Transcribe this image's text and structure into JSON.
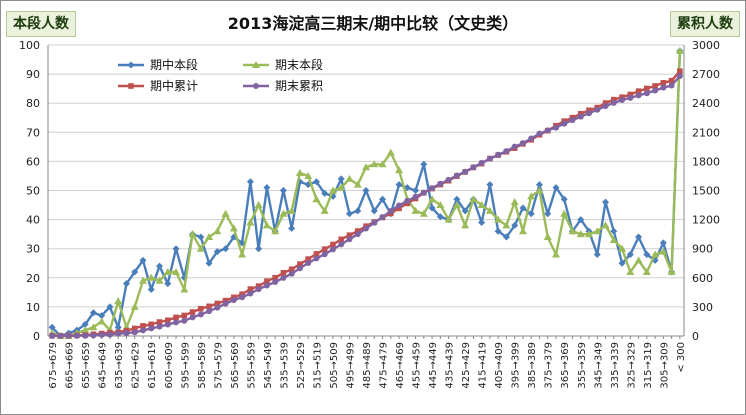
{
  "chart_data": {
    "type": "line",
    "title": "2013海淀高三期末/期中比较（文史类）",
    "ylabel_left": "本段人数",
    "ylabel_right": "累积人数",
    "ylim_left": [
      0,
      100
    ],
    "ylim_right": [
      0,
      3000
    ],
    "yticks_left": [
      0,
      10,
      20,
      30,
      40,
      50,
      60,
      70,
      80,
      90,
      100
    ],
    "yticks_right": [
      0,
      300,
      600,
      900,
      1200,
      1500,
      1800,
      2100,
      2400,
      2700,
      3000
    ],
    "grid": true,
    "legend_position": "top-left",
    "categories": [
      "675→679",
      "670→674",
      "665→669",
      "660→664",
      "655→659",
      "650→654",
      "645→649",
      "640→644",
      "635→639",
      "630→634",
      "625→629",
      "620→624",
      "615→619",
      "610→614",
      "605→609",
      "600→604",
      "595→599",
      "590→594",
      "585→589",
      "580→584",
      "575→579",
      "570→574",
      "565→569",
      "560→564",
      "555→559",
      "550→554",
      "545→549",
      "540→544",
      "535→539",
      "530→534",
      "525→529",
      "520→524",
      "515→519",
      "510→514",
      "505→509",
      "500→504",
      "495→499",
      "490→494",
      "485→489",
      "480→484",
      "475→479",
      "470→474",
      "465→469",
      "460→464",
      "455→459",
      "450→454",
      "445→449",
      "440→444",
      "435→439",
      "430→434",
      "425→429",
      "420→424",
      "415→419",
      "410→414",
      "405→409",
      "400→404",
      "395→399",
      "390→394",
      "385→389",
      "380→384",
      "375→379",
      "370→374",
      "365→369",
      "360→364",
      "355→359",
      "350→354",
      "345→349",
      "340→344",
      "335→339",
      "330→334",
      "325→329",
      "320→324",
      "315→319",
      "310→314",
      "305→309",
      "300→304",
      "< 300"
    ],
    "tick_labels_shown": [
      "675→679",
      "665→669",
      "655→659",
      "645→649",
      "635→639",
      "625→629",
      "615→619",
      "605→609",
      "595→599",
      "585→589",
      "575→579",
      "565→569",
      "555→559",
      "545→549",
      "535→539",
      "525→529",
      "515→519",
      "505→509",
      "495→499",
      "485→489",
      "475→479",
      "465→469",
      "455→459",
      "445→449",
      "435→439",
      "425→429",
      "415→419",
      "405→409",
      "395→399",
      "385→389",
      "375→379",
      "365→369",
      "355→359",
      "345→349",
      "335→339",
      "325→329",
      "315→319",
      "305→309",
      "< 300"
    ],
    "series": [
      {
        "name": "期中本段",
        "axis": "left",
        "color": "#4a7ebb",
        "marker": "diamond",
        "values": [
          3,
          0,
          1,
          2,
          4,
          8,
          7,
          10,
          3,
          18,
          22,
          26,
          16,
          24,
          18,
          30,
          20,
          35,
          34,
          25,
          29,
          30,
          34,
          32,
          53,
          30,
          51,
          36,
          50,
          37,
          53,
          52,
          53,
          49,
          48,
          54,
          42,
          43,
          50,
          43,
          47,
          42,
          52,
          51,
          50,
          59,
          44,
          41,
          40,
          47,
          43,
          47,
          39,
          52,
          36,
          34,
          38,
          44,
          42,
          52,
          42,
          51,
          47,
          36,
          40,
          36,
          28,
          46,
          36,
          25,
          28,
          34,
          28,
          26,
          32,
          22,
          98
        ]
      },
      {
        "name": "期末本段",
        "axis": "left",
        "color": "#9bbb59",
        "marker": "triangle",
        "values": [
          1,
          0,
          0,
          1,
          2,
          3,
          5,
          2,
          12,
          3,
          10,
          19,
          20,
          19,
          22,
          22,
          16,
          35,
          30,
          34,
          36,
          42,
          37,
          28,
          39,
          45,
          38,
          36,
          42,
          43,
          56,
          55,
          47,
          43,
          50,
          51,
          54,
          52,
          58,
          59,
          59,
          63,
          57,
          47,
          43,
          42,
          47,
          45,
          40,
          45,
          38,
          47,
          45,
          43,
          40,
          38,
          46,
          36,
          48,
          50,
          34,
          28,
          42,
          36,
          35,
          35,
          36,
          38,
          33,
          30,
          22,
          26,
          22,
          28,
          29,
          22,
          98
        ]
      },
      {
        "name": "期中累计",
        "axis": "right",
        "color": "#c0504d",
        "marker": "square",
        "values": [
          3,
          3,
          4,
          6,
          10,
          18,
          25,
          35,
          38,
          56,
          78,
          104,
          120,
          144,
          162,
          192,
          212,
          247,
          281,
          306,
          335,
          365,
          399,
          431,
          484,
          514,
          565,
          601,
          651,
          688,
          741,
          793,
          846,
          895,
          943,
          997,
          1039,
          1082,
          1132,
          1175,
          1222,
          1264,
          1316,
          1367,
          1417,
          1476,
          1520,
          1561,
          1601,
          1648,
          1691,
          1738,
          1777,
          1829,
          1865,
          1899,
          1937,
          1981,
          2023,
          2075,
          2117,
          2168,
          2215,
          2251,
          2291,
          2327,
          2355,
          2401,
          2437,
          2462,
          2490,
          2524,
          2552,
          2578,
          2610,
          2632,
          2730
        ]
      },
      {
        "name": "期末累积",
        "axis": "right",
        "color": "#8064a2",
        "marker": "circle",
        "values": [
          1,
          1,
          1,
          2,
          4,
          7,
          12,
          14,
          26,
          29,
          39,
          58,
          78,
          97,
          119,
          141,
          157,
          192,
          222,
          256,
          292,
          334,
          371,
          399,
          438,
          483,
          521,
          557,
          599,
          642,
          698,
          753,
          800,
          843,
          893,
          944,
          998,
          1050,
          1108,
          1167,
          1226,
          1289,
          1346,
          1393,
          1436,
          1478,
          1525,
          1570,
          1610,
          1655,
          1693,
          1740,
          1785,
          1828,
          1868,
          1906,
          1952,
          1988,
          2036,
          2086,
          2120,
          2148,
          2190,
          2226,
          2261,
          2296,
          2332,
          2370,
          2403,
          2433,
          2455,
          2481,
          2503,
          2531,
          2560,
          2582,
          2680
        ]
      }
    ]
  }
}
